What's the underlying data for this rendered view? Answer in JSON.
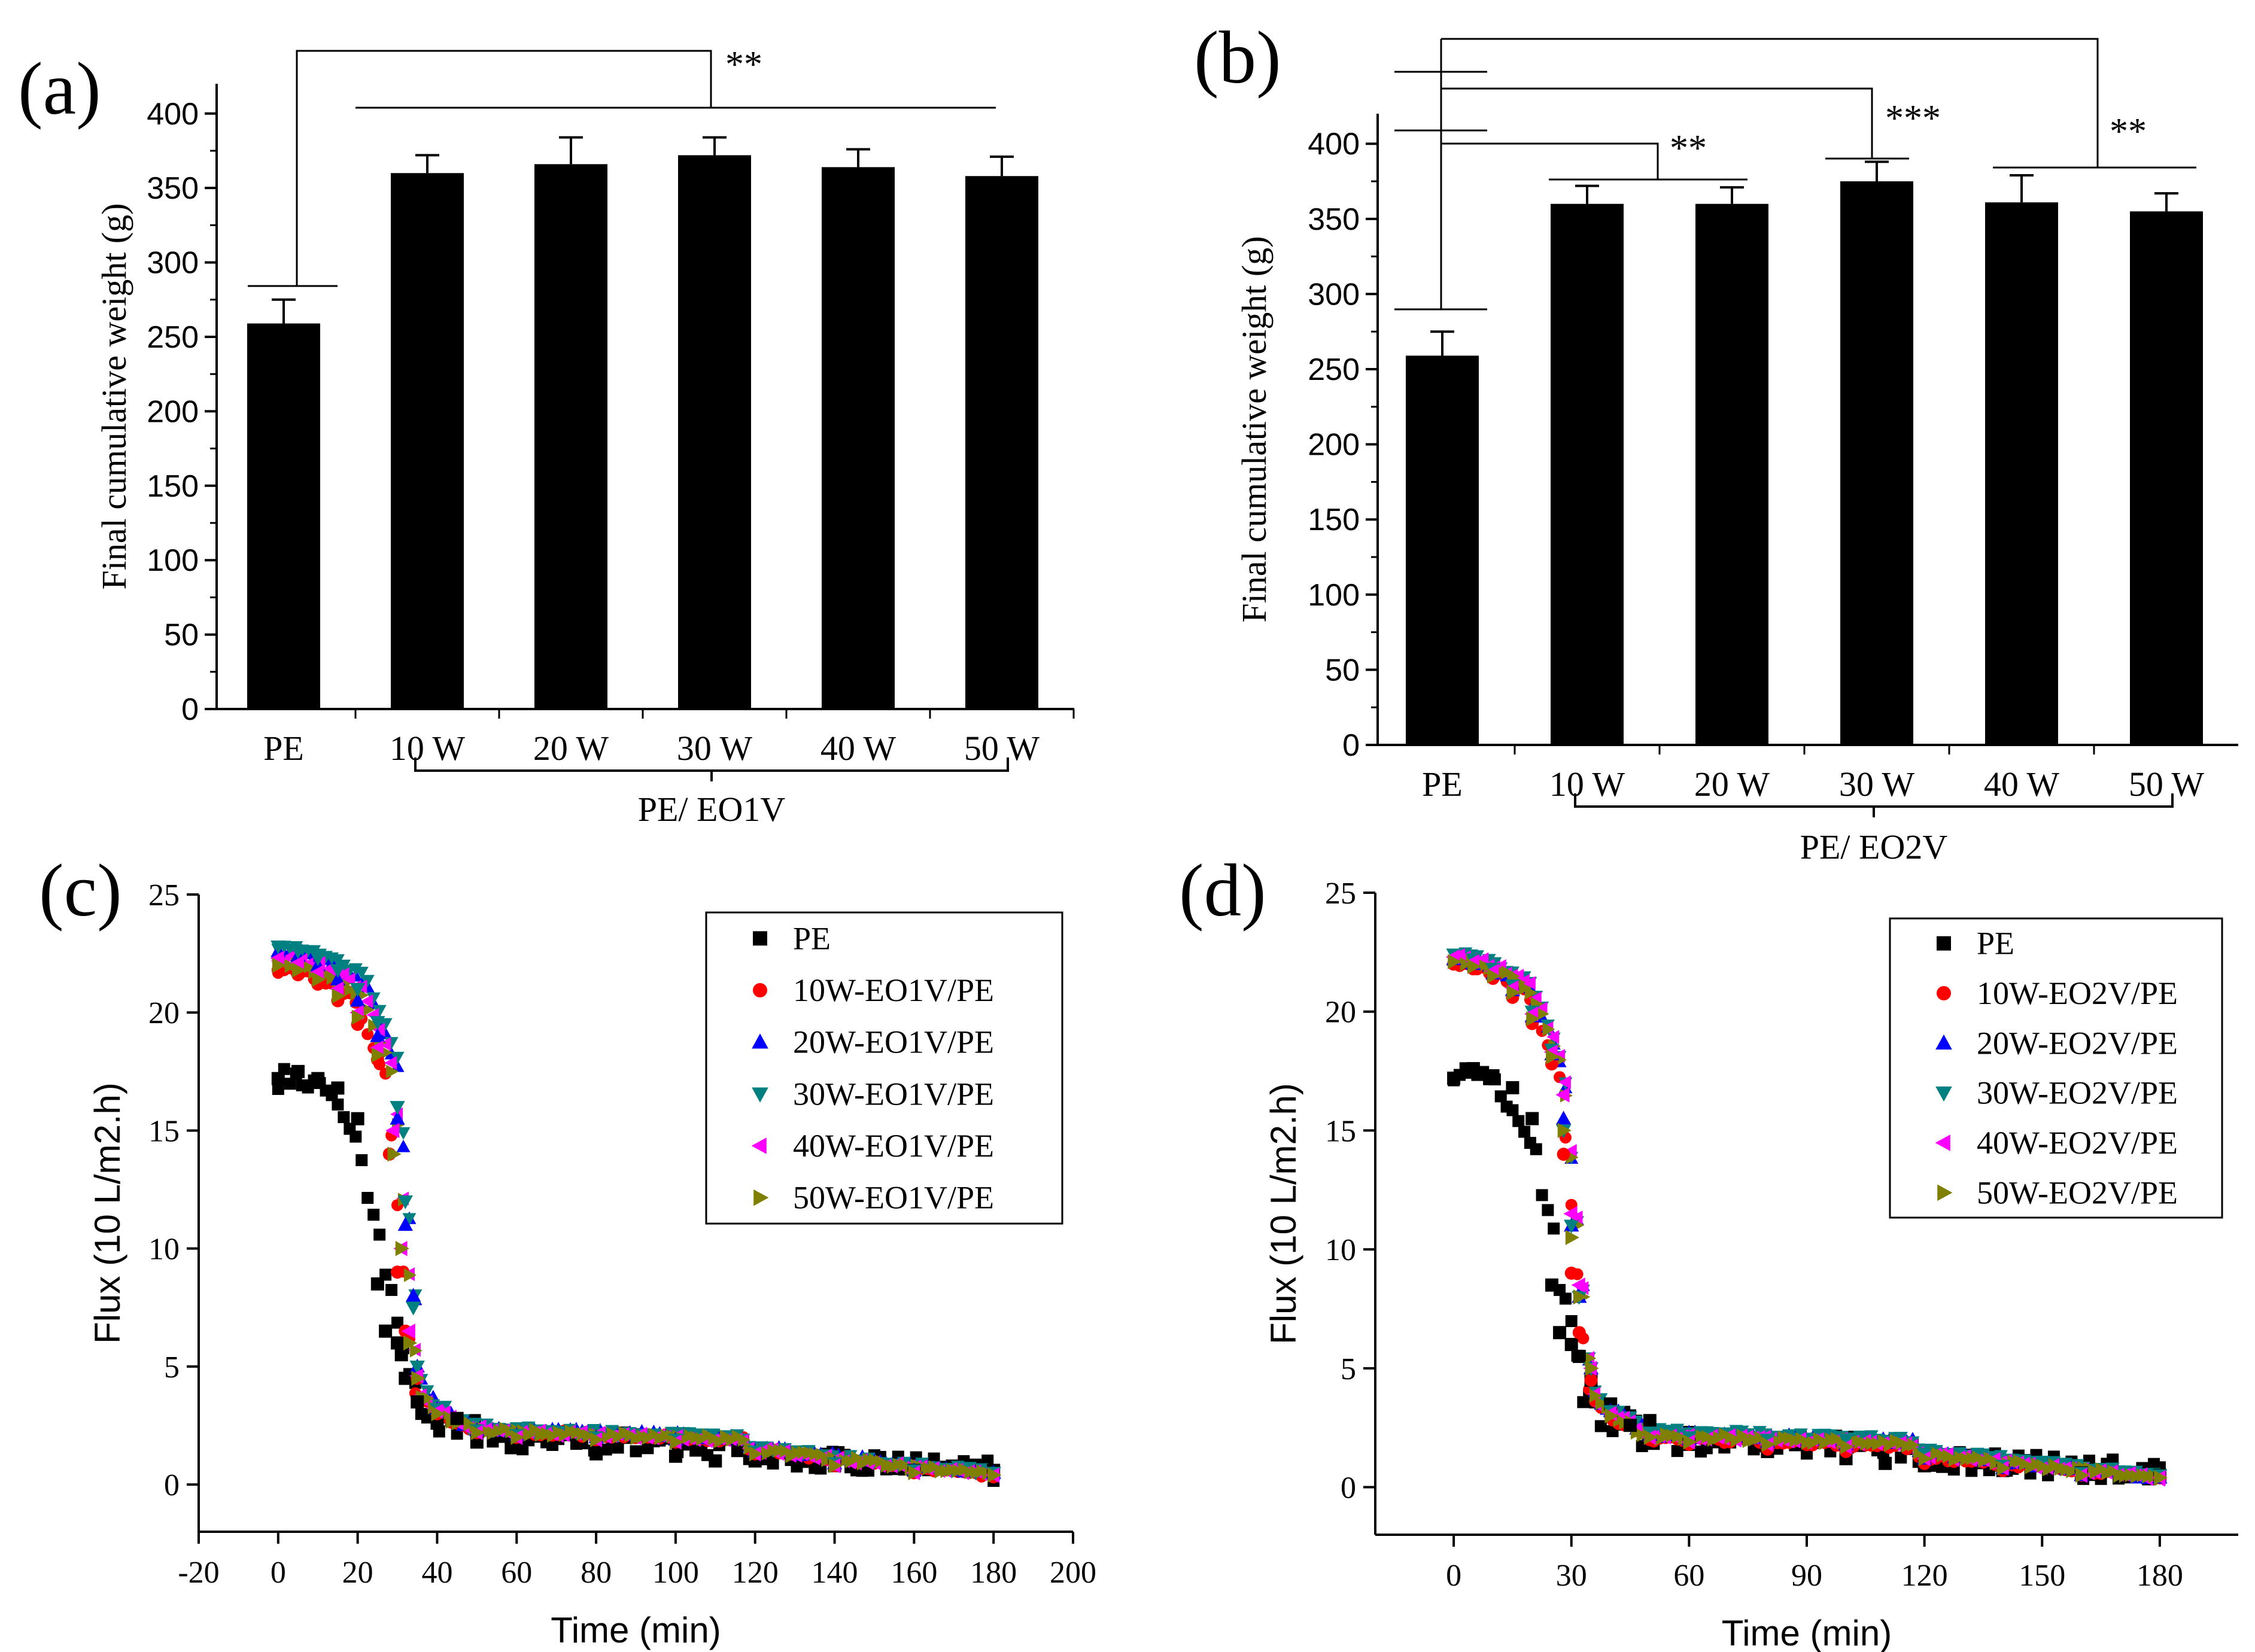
{
  "chart_data": [
    {
      "panel_label": "(a)",
      "type": "bar",
      "categories": [
        "PE",
        "10 W",
        "20 W",
        "30 W",
        "40 W",
        "50 W"
      ],
      "values": [
        259,
        360,
        366,
        372,
        364,
        358
      ],
      "errors": [
        16,
        12,
        18,
        12,
        12,
        13
      ],
      "ylabel": "Final cumulative weight (g)",
      "xlabel": "",
      "ylim": [
        0,
        420
      ],
      "yticks": [
        "0",
        "50",
        "100",
        "150",
        "200",
        "250",
        "300",
        "350",
        "400"
      ],
      "group_label": "PE/ EO1V",
      "significance": [
        {
          "label": "**",
          "from": "PE",
          "to": [
            "10 W",
            "50 W"
          ]
        }
      ]
    },
    {
      "panel_label": "(b)",
      "type": "bar",
      "categories": [
        "PE",
        "10 W",
        "20 W",
        "30 W",
        "40 W",
        "50 W"
      ],
      "values": [
        259,
        360,
        360,
        375,
        361,
        355
      ],
      "errors": [
        16,
        12,
        11,
        13,
        18,
        12
      ],
      "ylabel": "Final cumulative weight (g)",
      "xlabel": "",
      "ylim": [
        0,
        420
      ],
      "yticks": [
        "0",
        "50",
        "100",
        "150",
        "200",
        "250",
        "300",
        "350",
        "400"
      ],
      "group_label": "PE/ EO2V",
      "significance": [
        {
          "label": "**",
          "from": "PE",
          "to": [
            "10 W",
            "20 W"
          ]
        },
        {
          "label": "***",
          "from": "PE",
          "to": [
            "30 W"
          ]
        },
        {
          "label": "**",
          "from": "PE",
          "to": [
            "40 W",
            "50 W"
          ]
        }
      ]
    },
    {
      "panel_label": "(c)",
      "type": "scatter",
      "title": "",
      "xlabel": "Time (min)",
      "ylabel": "Flux (10 L/m2.h)",
      "xlim": [
        -20,
        200
      ],
      "ylim": [
        -2,
        25
      ],
      "xticks": [
        -20,
        0,
        20,
        40,
        60,
        80,
        100,
        120,
        140,
        160,
        180,
        200
      ],
      "yticks": [
        0,
        5,
        10,
        15,
        20,
        25
      ],
      "legend_position": "top-right",
      "series": [
        {
          "name": "PE",
          "color": "#000000",
          "marker": "square",
          "x": [
            0,
            5,
            10,
            15,
            20,
            25,
            27,
            30,
            31,
            32,
            35,
            40,
            45,
            50,
            60,
            80,
            100,
            110,
            120,
            140,
            160,
            180
          ],
          "y": [
            17.2,
            17.5,
            17.2,
            16.8,
            15.5,
            8.5,
            6.5,
            6.0,
            5.5,
            4.5,
            3.5,
            2.6,
            2.8,
            1.8,
            1.6,
            1.3,
            1.2,
            1.0,
            1.0,
            0.8,
            0.6,
            0.6
          ],
          "lag_y": 17.2,
          "knee_x": 20,
          "knee_y": 14.8,
          "drop_x": 32,
          "drop_y": 4.8,
          "plateau_y": 1.6,
          "end_y": 0.6,
          "noise": 0.9
        },
        {
          "name": "10W-EO1V/PE",
          "color": "#ff0000",
          "marker": "circle",
          "x": [
            0,
            5,
            10,
            15,
            20,
            25,
            28,
            30,
            32,
            35,
            40,
            50,
            60,
            80,
            100,
            120,
            140,
            160,
            180
          ],
          "y": [
            21.8,
            21.6,
            21.2,
            20.5,
            19.5,
            18.0,
            14.0,
            9.0,
            6.5,
            4.5,
            3.0,
            2.2,
            2.0,
            1.9,
            1.8,
            1.3,
            0.8,
            0.5,
            0.4
          ],
          "lag_y": 21.8,
          "knee_x": 27,
          "knee_y": 17.4,
          "drop_x": 34,
          "drop_y": 4.4,
          "plateau_y": 1.9,
          "end_y": 0.4,
          "noise": 0.25
        },
        {
          "name": "20W-EO1V/PE",
          "color": "#0000ff",
          "marker": "triangle-up",
          "x": [
            0,
            5,
            10,
            15,
            20,
            25,
            30,
            32,
            34,
            35,
            40,
            50,
            60,
            80,
            100,
            120,
            140,
            160,
            180
          ],
          "y": [
            22.6,
            22.4,
            22.0,
            21.4,
            20.5,
            19.0,
            15.5,
            11.0,
            8.0,
            5.0,
            3.2,
            2.3,
            2.1,
            2.0,
            1.9,
            1.4,
            0.9,
            0.6,
            0.5
          ],
          "lag_y": 22.6,
          "knee_x": 30,
          "knee_y": 17.8,
          "drop_x": 36,
          "drop_y": 4.6,
          "plateau_y": 2.0,
          "end_y": 0.5,
          "noise": 0.25
        },
        {
          "name": "30W-EO1V/PE",
          "color": "#008080",
          "marker": "triangle-down",
          "x": [
            0,
            5,
            10,
            15,
            20,
            25,
            30,
            32,
            34,
            35,
            40,
            50,
            60,
            80,
            100,
            120,
            140,
            160,
            180
          ],
          "y": [
            22.8,
            22.6,
            22.3,
            21.8,
            21.0,
            19.6,
            16.0,
            12.0,
            7.5,
            5.0,
            3.2,
            2.3,
            2.1,
            2.0,
            1.9,
            1.4,
            0.9,
            0.6,
            0.5
          ],
          "lag_y": 22.8,
          "knee_x": 30,
          "knee_y": 18.3,
          "drop_x": 36,
          "drop_y": 4.6,
          "plateau_y": 2.0,
          "end_y": 0.5,
          "noise": 0.25
        },
        {
          "name": "40W-EO1V/PE",
          "color": "#ff00ff",
          "marker": "triangle-left",
          "x": [
            0,
            5,
            10,
            15,
            20,
            25,
            29,
            31,
            33,
            35,
            40,
            50,
            60,
            80,
            100,
            120,
            140,
            160,
            180
          ],
          "y": [
            22.3,
            22.1,
            21.7,
            21.0,
            20.0,
            18.5,
            15.0,
            10.0,
            6.5,
            4.6,
            3.1,
            2.2,
            2.0,
            1.9,
            1.8,
            1.3,
            0.8,
            0.5,
            0.4
          ],
          "lag_y": 22.3,
          "knee_x": 29,
          "knee_y": 17.8,
          "drop_x": 35,
          "drop_y": 4.5,
          "plateau_y": 1.9,
          "end_y": 0.4,
          "noise": 0.25
        },
        {
          "name": "50W-EO1V/PE",
          "color": "#808000",
          "marker": "triangle-right",
          "x": [
            0,
            5,
            10,
            15,
            20,
            25,
            29,
            31,
            33,
            35,
            40,
            50,
            60,
            80,
            100,
            120,
            140,
            160,
            180
          ],
          "y": [
            22.0,
            21.8,
            21.4,
            20.7,
            19.8,
            18.2,
            14.0,
            10.0,
            6.0,
            4.5,
            3.0,
            2.2,
            2.0,
            1.9,
            1.8,
            1.3,
            0.8,
            0.5,
            0.4
          ],
          "lag_y": 22.0,
          "knee_x": 29,
          "knee_y": 17.4,
          "drop_x": 35,
          "drop_y": 4.4,
          "plateau_y": 1.9,
          "end_y": 0.4,
          "noise": 0.25
        }
      ]
    },
    {
      "panel_label": "(d)",
      "type": "scatter",
      "title": "",
      "xlabel": "Time (min)",
      "ylabel": "Flux (10 L/m2.h)",
      "xlim": [
        -20,
        200
      ],
      "ylim": [
        -2,
        25
      ],
      "xticks": [
        0,
        30,
        60,
        90,
        120,
        150,
        180
      ],
      "yticks": [
        0,
        5,
        10,
        15,
        20,
        25
      ],
      "legend_position": "top-right",
      "series": [
        {
          "name": "PE",
          "color": "#000000",
          "marker": "square",
          "x": [
            0,
            5,
            10,
            15,
            20,
            25,
            27,
            30,
            32,
            35,
            40,
            45,
            50,
            60,
            80,
            100,
            110,
            120,
            140,
            160,
            180
          ],
          "y": [
            17.2,
            17.6,
            17.3,
            16.8,
            15.5,
            8.5,
            6.5,
            6.0,
            5.5,
            4.5,
            3.5,
            2.6,
            2.8,
            1.8,
            1.5,
            1.2,
            1.0,
            0.9,
            0.7,
            0.6,
            0.5
          ],
          "lag_y": 17.2,
          "knee_x": 20,
          "knee_y": 14.8,
          "drop_x": 32,
          "drop_y": 4.8,
          "plateau_y": 1.6,
          "end_y": 0.6,
          "noise": 0.9
        },
        {
          "name": "10W-EO2V/PE",
          "color": "#ff0000",
          "marker": "circle",
          "x": [
            0,
            5,
            10,
            15,
            20,
            25,
            28,
            30,
            32,
            35,
            40,
            50,
            60,
            80,
            100,
            120,
            140,
            160,
            180
          ],
          "y": [
            22.0,
            21.8,
            21.4,
            20.6,
            19.5,
            17.8,
            14.0,
            9.0,
            6.5,
            4.5,
            3.0,
            2.0,
            1.8,
            1.6,
            1.5,
            1.0,
            0.7,
            0.5,
            0.4
          ],
          "lag_y": 22.0,
          "knee_x": 27,
          "knee_y": 17.4,
          "drop_x": 34,
          "drop_y": 4.4,
          "plateau_y": 1.7,
          "end_y": 0.4,
          "noise": 0.25
        },
        {
          "name": "20W-EO2V/PE",
          "color": "#0000ff",
          "marker": "triangle-up",
          "x": [
            0,
            5,
            10,
            15,
            20,
            25,
            28,
            30,
            32,
            35,
            40,
            50,
            60,
            80,
            100,
            120,
            140,
            160,
            180
          ],
          "y": [
            22.2,
            22.0,
            21.6,
            20.9,
            19.8,
            18.2,
            15.5,
            11.0,
            8.0,
            5.0,
            3.2,
            2.2,
            2.0,
            1.9,
            1.8,
            1.2,
            0.8,
            0.5,
            0.4
          ],
          "lag_y": 22.2,
          "knee_x": 28,
          "knee_y": 17.6,
          "drop_x": 35,
          "drop_y": 4.6,
          "plateau_y": 1.9,
          "end_y": 0.4,
          "noise": 0.25
        },
        {
          "name": "30W-EO2V/PE",
          "color": "#008080",
          "marker": "triangle-down",
          "x": [
            0,
            5,
            10,
            15,
            20,
            25,
            28,
            30,
            32,
            35,
            40,
            50,
            60,
            80,
            100,
            120,
            140,
            160,
            180
          ],
          "y": [
            22.4,
            22.2,
            21.8,
            21.1,
            20.0,
            18.4,
            15.0,
            11.0,
            8.0,
            5.0,
            3.2,
            2.3,
            2.1,
            2.0,
            2.0,
            1.4,
            0.9,
            0.6,
            0.5
          ],
          "lag_y": 22.4,
          "knee_x": 28,
          "knee_y": 17.8,
          "drop_x": 35,
          "drop_y": 4.6,
          "plateau_y": 2.0,
          "end_y": 0.5,
          "noise": 0.25
        },
        {
          "name": "40W-EO2V/PE",
          "color": "#ff00ff",
          "marker": "triangle-left",
          "x": [
            0,
            5,
            10,
            15,
            20,
            25,
            28,
            30,
            32,
            35,
            40,
            50,
            60,
            80,
            100,
            120,
            140,
            160,
            180
          ],
          "y": [
            22.3,
            22.1,
            21.7,
            21.0,
            19.9,
            18.3,
            16.5,
            11.5,
            8.5,
            5.0,
            3.1,
            2.1,
            1.9,
            1.8,
            1.7,
            1.2,
            0.8,
            0.5,
            0.4
          ],
          "lag_y": 22.3,
          "knee_x": 28,
          "knee_y": 17.8,
          "drop_x": 35,
          "drop_y": 4.5,
          "plateau_y": 1.8,
          "end_y": 0.4,
          "noise": 0.25
        },
        {
          "name": "50W-EO2V/PE",
          "color": "#808000",
          "marker": "triangle-right",
          "x": [
            0,
            5,
            10,
            15,
            20,
            25,
            28,
            30,
            32,
            35,
            40,
            50,
            60,
            80,
            100,
            120,
            140,
            160,
            180
          ],
          "y": [
            22.1,
            21.9,
            21.5,
            20.8,
            19.7,
            18.1,
            15.0,
            10.5,
            8.0,
            5.0,
            3.0,
            2.1,
            1.9,
            1.8,
            1.7,
            1.2,
            0.8,
            0.5,
            0.4
          ],
          "lag_y": 22.1,
          "knee_x": 28,
          "knee_y": 17.6,
          "drop_x": 35,
          "drop_y": 4.4,
          "plateau_y": 1.8,
          "end_y": 0.4,
          "noise": 0.25
        }
      ]
    }
  ]
}
